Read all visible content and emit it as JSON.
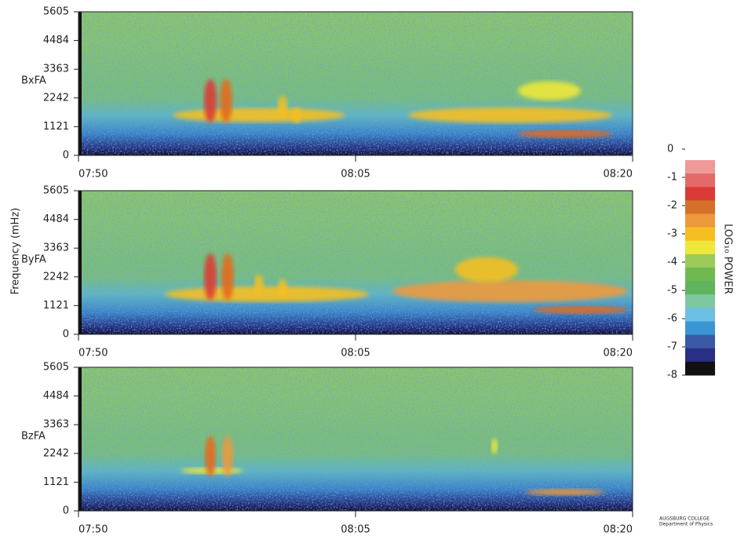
{
  "chart_data": [
    {
      "type": "spectrogram",
      "ylabel": "BxFA",
      "ylim": [
        0,
        5605
      ],
      "yticks": [
        0,
        1121,
        2242,
        3363,
        4484,
        5605
      ],
      "xticks": [
        "07:50",
        "08:05",
        "08:20"
      ]
    },
    {
      "type": "spectrogram",
      "ylabel": "ByFA",
      "ylim": [
        0,
        5605
      ],
      "yticks": [
        0,
        1121,
        2242,
        3363,
        4484,
        5605
      ],
      "xticks": [
        "07:50",
        "08:05",
        "08:20"
      ]
    },
    {
      "type": "spectrogram",
      "ylabel": "BzFA",
      "ylim": [
        0,
        5605
      ],
      "yticks": [
        0,
        1121,
        2242,
        3363,
        4484,
        5605
      ],
      "xticks": [
        "07:50",
        "08:05",
        "08:20"
      ]
    }
  ],
  "shared_ylabel": "Frequency (mHz)",
  "colorbar": {
    "label": "LOG₁₀ POWER",
    "lim": [
      -8,
      0
    ],
    "ticks": [
      0,
      -1,
      -2,
      -3,
      -4,
      -5,
      -6,
      -7,
      -8
    ],
    "colors": [
      "#ee9a98",
      "#e46a68",
      "#dc3a36",
      "#d4702a",
      "#ee9a3c",
      "#f5bf22",
      "#eee83a",
      "#9ccb5a",
      "#6eba50",
      "#5fb460",
      "#7ec8a0",
      "#6cc0e4",
      "#3a96d2",
      "#3a5aa6",
      "#2a2f86",
      "#111111"
    ]
  },
  "footer": [
    "AUGSBURG COLLEGE",
    "Department of Physics"
  ]
}
